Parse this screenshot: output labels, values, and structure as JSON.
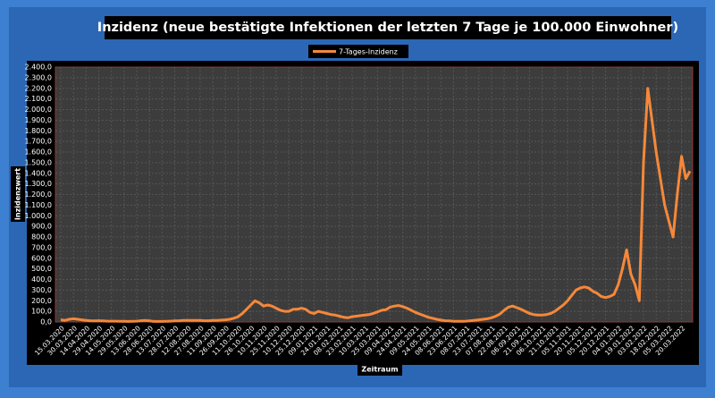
{
  "chart_data": {
    "type": "line",
    "title": "Inzidenz (neue bestätigte Infektionen der letzten 7 Tage je 100.000 Einwohner)",
    "x_label": "Zeitraum",
    "y_label": "Inzidenzwert",
    "grid": true,
    "legend": "top",
    "categories": [
      "15.03.2020",
      null,
      null,
      "30.03.2020",
      null,
      null,
      "14.04.2020",
      null,
      null,
      "29.04.2020",
      null,
      null,
      "14.05.2020",
      null,
      null,
      "29.05.2020",
      null,
      null,
      "13.06.2020",
      null,
      null,
      "28.06.2020",
      null,
      null,
      "13.07.2020",
      null,
      null,
      "28.07.2020",
      null,
      null,
      "12.08.2020",
      null,
      null,
      "27.08.2020",
      null,
      null,
      "11.09.2020",
      null,
      null,
      "26.09.2020",
      null,
      null,
      "11.10.2020",
      null,
      null,
      "26.10.2020",
      null,
      null,
      "10.11.2020",
      null,
      null,
      "25.11.2020",
      null,
      null,
      "10.12.2020",
      null,
      null,
      "25.12.2020",
      null,
      null,
      "09.01.2021",
      null,
      null,
      "24.01.2021",
      null,
      null,
      "08.02.2021",
      null,
      null,
      "23.02.2021",
      null,
      null,
      "10.03.2021",
      null,
      null,
      "25.03.2021",
      null,
      null,
      "09.04.2021",
      null,
      null,
      "24.04.2021",
      null,
      null,
      "09.05.2021",
      null,
      null,
      "24.05.2021",
      null,
      null,
      "08.06.2021",
      null,
      null,
      "23.06.2021",
      null,
      null,
      "08.07.2021",
      null,
      null,
      "23.07.2021",
      null,
      null,
      "07.08.2021",
      null,
      null,
      "22.08.2021",
      null,
      null,
      "06.09.2021",
      null,
      null,
      "21.09.2021",
      null,
      null,
      "06.10.2021",
      null,
      null,
      "21.10.2021",
      null,
      null,
      "05.11.2021",
      null,
      null,
      "20.11.2021",
      null,
      null,
      "05.12.2021",
      null,
      null,
      "20.12.2021",
      null,
      null,
      "04.01.2022",
      null,
      null,
      "19.01.2022",
      null,
      null,
      "03.02.2022",
      null,
      null,
      "18.02.2022",
      null,
      null,
      "05.03.2022",
      null,
      null,
      "20.03.2022",
      null,
      null
    ],
    "series": [
      {
        "name": "7-Tages-Inzidenz",
        "color": "#f5883a",
        "values": [
          20,
          15,
          25,
          30,
          25,
          20,
          15,
          12,
          10,
          12,
          10,
          8,
          8,
          8,
          7,
          6,
          5,
          6,
          8,
          12,
          15,
          10,
          5,
          5,
          5,
          6,
          8,
          10,
          12,
          15,
          15,
          15,
          14,
          14,
          12,
          12,
          14,
          15,
          18,
          20,
          25,
          35,
          50,
          80,
          120,
          160,
          200,
          180,
          150,
          160,
          150,
          130,
          110,
          100,
          100,
          120,
          120,
          130,
          120,
          90,
          80,
          100,
          90,
          80,
          70,
          65,
          55,
          45,
          40,
          50,
          55,
          60,
          65,
          70,
          80,
          95,
          110,
          115,
          140,
          150,
          155,
          145,
          130,
          110,
          90,
          75,
          60,
          45,
          35,
          25,
          18,
          12,
          10,
          7,
          6,
          6,
          8,
          12,
          16,
          20,
          25,
          30,
          40,
          55,
          75,
          110,
          140,
          150,
          135,
          120,
          100,
          80,
          70,
          65,
          65,
          70,
          80,
          100,
          130,
          160,
          200,
          250,
          300,
          320,
          330,
          320,
          290,
          270,
          240,
          230,
          240,
          260,
          350,
          500,
          680,
          450,
          350,
          200,
          1500,
          2200,
          1900,
          1600,
          1350,
          1100,
          950,
          800,
          1200,
          1560,
          1350,
          1420
        ]
      }
    ],
    "ylim": [
      0,
      2400
    ],
    "yticks": [
      {
        "value": 0,
        "label": "0,0"
      },
      {
        "value": 100,
        "label": "100,0"
      },
      {
        "value": 200,
        "label": "200,0"
      },
      {
        "value": 300,
        "label": "300,0"
      },
      {
        "value": 400,
        "label": "400,0"
      },
      {
        "value": 500,
        "label": "500,0"
      },
      {
        "value": 600,
        "label": "600,0"
      },
      {
        "value": 700,
        "label": "700,0"
      },
      {
        "value": 800,
        "label": "800,0"
      },
      {
        "value": 900,
        "label": "900,0"
      },
      {
        "value": 1000,
        "label": "1.000,0"
      },
      {
        "value": 1100,
        "label": "1.100,0"
      },
      {
        "value": 1200,
        "label": "1.200,0"
      },
      {
        "value": 1300,
        "label": "1.300,0"
      },
      {
        "value": 1400,
        "label": "1.400,0"
      },
      {
        "value": 1500,
        "label": "1.500,0"
      },
      {
        "value": 1600,
        "label": "1.600,0"
      },
      {
        "value": 1700,
        "label": "1.700,0"
      },
      {
        "value": 1800,
        "label": "1.800,0"
      },
      {
        "value": 1900,
        "label": "1.900,0"
      },
      {
        "value": 2000,
        "label": "2.000,0"
      },
      {
        "value": 2100,
        "label": "2.100,0"
      },
      {
        "value": 2200,
        "label": "2.200,0"
      },
      {
        "value": 2300,
        "label": "2.300,0"
      },
      {
        "value": 2400,
        "label": "2.400,0"
      }
    ]
  }
}
